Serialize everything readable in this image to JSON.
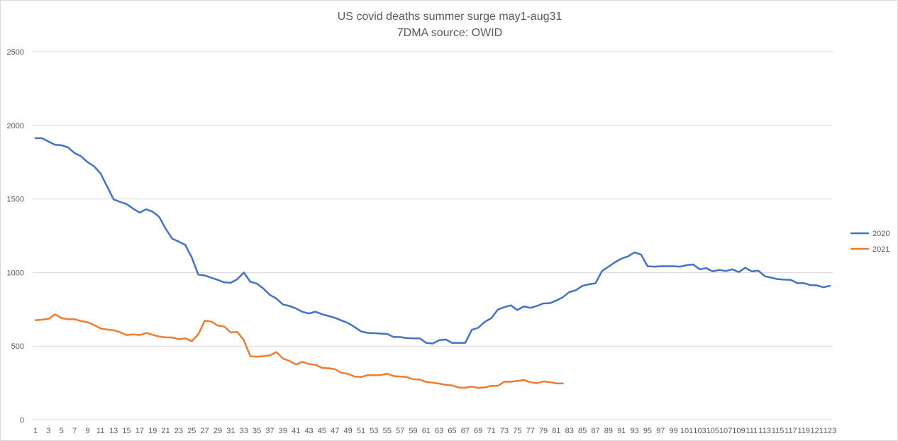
{
  "chart_data": {
    "type": "line",
    "title": "US covid deaths summer surge may1-aug31",
    "subtitle": "7DMA source: OWID",
    "xlabel": "",
    "ylabel": "",
    "ylim": [
      0,
      2500
    ],
    "yticks": [
      0,
      500,
      1000,
      1500,
      2000,
      2500
    ],
    "xlim": [
      1,
      123
    ],
    "grid": true,
    "legend": "right",
    "series": [
      {
        "name": "2020",
        "color": "#4472C4",
        "values": [
          1913,
          1913,
          1890,
          1868,
          1865,
          1850,
          1812,
          1790,
          1750,
          1722,
          1673,
          1585,
          1497,
          1480,
          1465,
          1434,
          1407,
          1430,
          1413,
          1378,
          1297,
          1230,
          1210,
          1188,
          1103,
          986,
          980,
          965,
          950,
          933,
          931,
          955,
          1000,
          937,
          925,
          891,
          848,
          823,
          783,
          773,
          756,
          733,
          722,
          734,
          717,
          705,
          692,
          674,
          657,
          630,
          600,
          590,
          588,
          585,
          583,
          562,
          562,
          555,
          553,
          553,
          522,
          518,
          540,
          545,
          522,
          522,
          522,
          610,
          625,
          665,
          690,
          748,
          765,
          777,
          745,
          770,
          760,
          773,
          790,
          792,
          810,
          833,
          868,
          880,
          910,
          920,
          927,
          1010,
          1040,
          1070,
          1095,
          1110,
          1137,
          1122,
          1043,
          1040,
          1043,
          1043,
          1043,
          1040,
          1050,
          1055,
          1022,
          1030,
          1008,
          1018,
          1010,
          1022,
          1003,
          1033,
          1008,
          1013,
          975,
          965,
          955,
          952,
          950,
          928,
          928,
          915,
          913,
          900,
          910
        ]
      },
      {
        "name": "2021",
        "color": "#ED7D31",
        "values": [
          676,
          680,
          685,
          716,
          690,
          683,
          683,
          670,
          663,
          643,
          620,
          613,
          608,
          595,
          575,
          580,
          575,
          590,
          577,
          565,
          560,
          558,
          547,
          553,
          533,
          580,
          673,
          667,
          640,
          633,
          593,
          597,
          540,
          431,
          428,
          432,
          437,
          460,
          415,
          400,
          375,
          393,
          378,
          373,
          353,
          350,
          343,
          318,
          312,
          293,
          290,
          303,
          303,
          303,
          313,
          297,
          293,
          290,
          275,
          273,
          257,
          252,
          245,
          237,
          233,
          218,
          218,
          225,
          216,
          220,
          230,
          230,
          258,
          258,
          263,
          270,
          255,
          248,
          260,
          255,
          247,
          247
        ]
      }
    ],
    "x_tick_labels": [
      "1",
      "3",
      "5",
      "7",
      "9",
      "11",
      "13",
      "15",
      "17",
      "19",
      "21",
      "23",
      "25",
      "27",
      "29",
      "31",
      "33",
      "35",
      "37",
      "39",
      "41",
      "43",
      "45",
      "47",
      "49",
      "51",
      "53",
      "55",
      "57",
      "59",
      "61",
      "63",
      "65",
      "67",
      "69",
      "71",
      "73",
      "75",
      "77",
      "79",
      "81",
      "83",
      "85",
      "87",
      "89",
      "91",
      "93",
      "95",
      "97",
      "99",
      "101",
      "103",
      "105",
      "107",
      "109",
      "111",
      "113",
      "115",
      "117",
      "119",
      "121",
      "123"
    ]
  }
}
